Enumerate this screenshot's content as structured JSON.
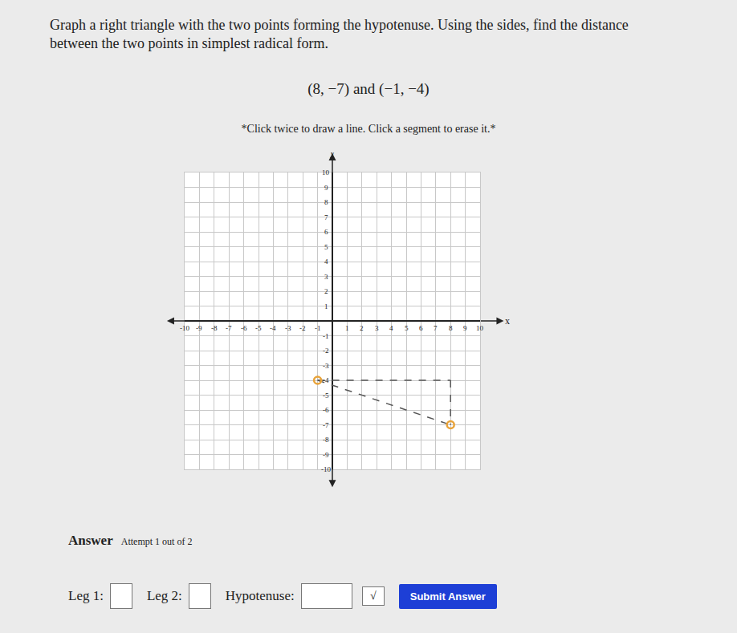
{
  "question": [
    "Graph a right triangle with the two points forming the hypotenuse. Using the sides, find the distance",
    "between the two points in simplest radical form."
  ],
  "points_text": "(8, −7) and (−1, −4)",
  "instruction": "*Click twice to draw a line. Click a segment to erase it.*",
  "chart_data": {
    "type": "scatter",
    "x_label": "x",
    "y_label": "y",
    "xlim": [
      -10,
      10
    ],
    "ylim": [
      -10,
      10
    ],
    "xticks": [
      -10,
      -9,
      -8,
      -7,
      -6,
      -5,
      -4,
      -3,
      -2,
      -1,
      1,
      2,
      3,
      4,
      5,
      6,
      7,
      8,
      9,
      10
    ],
    "yticks": [
      -10,
      -9,
      -8,
      -7,
      -6,
      -5,
      -4,
      -3,
      -2,
      -1,
      1,
      2,
      3,
      4,
      5,
      6,
      7,
      8,
      9,
      10
    ],
    "grid": true,
    "points": {
      "x": [
        8,
        -1
      ],
      "y": [
        -7,
        -4
      ]
    },
    "segments": [
      {
        "x": [
          -1,
          8
        ],
        "y": [
          -4,
          -4
        ]
      },
      {
        "x": [
          8,
          8
        ],
        "y": [
          -4,
          -7
        ]
      },
      {
        "x": [
          -1,
          8
        ],
        "y": [
          -4,
          -7
        ]
      }
    ],
    "color": "#e8a33a",
    "marker": "circle-open",
    "line_style": "dash"
  },
  "answer": {
    "heading": "Answer",
    "attempt": "Attempt 1 out of 2",
    "fields": [
      "Leg 1:",
      "Leg 2:",
      "Hypotenuse:"
    ],
    "radical": "√",
    "button": "Submit Answer"
  }
}
